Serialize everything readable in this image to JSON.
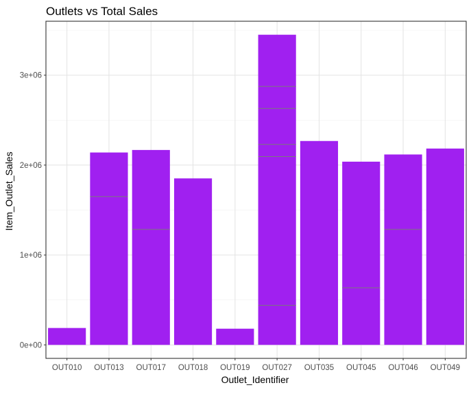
{
  "chart_data": {
    "type": "bar",
    "title": "Outlets vs Total Sales",
    "xlabel": "Outlet_Identifier",
    "ylabel": "Item_Outlet_Sales",
    "ylim": [
      -150000,
      3600000
    ],
    "yticks": [
      0,
      1000000,
      2000000,
      3000000
    ],
    "ytick_labels": [
      "0e+00",
      "1e+06",
      "2e+06",
      "3e+06"
    ],
    "grid": true,
    "legend": "none",
    "categories": [
      "OUT010",
      "OUT013",
      "OUT017",
      "OUT018",
      "OUT019",
      "OUT027",
      "OUT035",
      "OUT045",
      "OUT046",
      "OUT049"
    ],
    "values": [
      188000,
      2140000,
      2168000,
      1852000,
      180000,
      3450000,
      2268000,
      2038000,
      2118000,
      2184000
    ],
    "segment_boundaries": [
      [],
      [
        1650000
      ],
      [
        1285000
      ],
      [],
      [],
      [
        440000,
        2095000,
        2230000,
        2630000,
        2875000
      ],
      [],
      [
        635000
      ],
      [
        1285000
      ],
      []
    ],
    "bar_color": "#A020F0",
    "segment_line_color": "#7a7a7a"
  }
}
